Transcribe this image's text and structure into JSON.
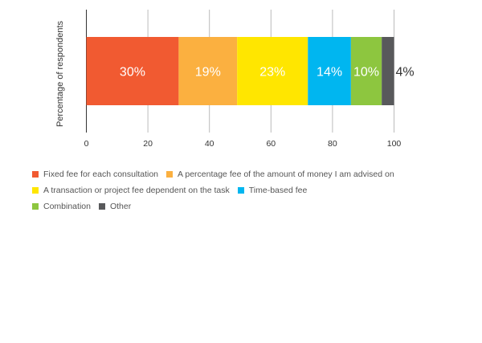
{
  "chart_data": {
    "type": "bar",
    "orientation": "horizontal-stacked",
    "ylabel": "Percentage of respondents",
    "xlabel": "",
    "xlim": [
      0,
      100
    ],
    "xticks": [
      0,
      20,
      40,
      60,
      80,
      100
    ],
    "grid": true,
    "legend_position": "bottom",
    "series": [
      {
        "name": "Fixed fee for each consultation",
        "value": 30,
        "label": "30%",
        "color": "#f15a31"
      },
      {
        "name": "A percentage fee of the amount of money I am advised on",
        "value": 19,
        "label": "19%",
        "color": "#fbb040"
      },
      {
        "name": "A transaction or project fee dependent on the task",
        "value": 23,
        "label": "23%",
        "color": "#ffe600"
      },
      {
        "name": "Time-based fee",
        "value": 14,
        "label": "14%",
        "color": "#00b6f0"
      },
      {
        "name": "Combination",
        "value": 10,
        "label": "10%",
        "color": "#8dc63f"
      },
      {
        "name": "Other",
        "value": 4,
        "label": "4%",
        "color": "#58595b"
      }
    ]
  },
  "legend_rows": [
    [
      0,
      1
    ],
    [
      2,
      3
    ],
    [
      4,
      5
    ]
  ]
}
